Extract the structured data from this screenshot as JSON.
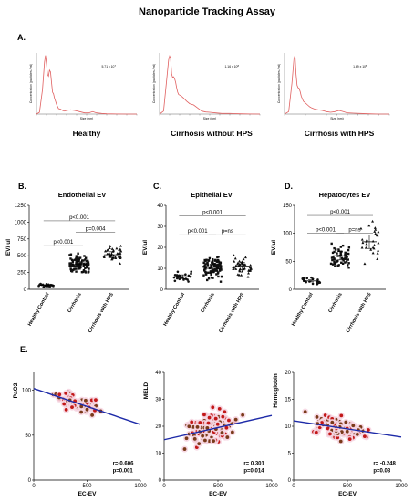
{
  "title": "Nanoparticle Tracking Assay",
  "chart_data": [
    {
      "panel": "A.",
      "type": "line",
      "caption": "Healthy",
      "annotation": "5.71 x 10^7",
      "xlabel": "Size (nm)",
      "ylabel": "Concentration (particles / ml)",
      "xlim": [
        0,
        1000
      ],
      "color": "#e06060",
      "x": [
        0,
        30,
        60,
        80,
        90,
        100,
        110,
        120,
        130,
        140,
        150,
        160,
        170,
        180,
        190,
        200,
        220,
        240,
        260,
        280,
        300,
        340,
        380,
        430,
        480,
        520,
        560,
        600,
        650,
        700,
        800,
        900,
        1000
      ],
      "y": [
        0,
        0.3,
        4,
        8.5,
        9.6,
        8.2,
        6.5,
        6.2,
        7.2,
        6.9,
        5.2,
        3.6,
        3.3,
        2.6,
        2.1,
        1.6,
        0.9,
        0.8,
        0.6,
        0.5,
        0.6,
        0.7,
        0.6,
        0.4,
        0.2,
        0.2,
        0.4,
        0.2,
        0.1,
        0.05,
        0.02,
        0,
        0
      ]
    },
    {
      "panel": "",
      "type": "line",
      "caption": "Cirrhosis without HPS",
      "annotation": "1.16 x 10^8",
      "xlabel": "Size (nm)",
      "ylabel": "Concentration (particles / ml)",
      "xlim": [
        0,
        1000
      ],
      "color": "#e06060",
      "x": [
        0,
        40,
        70,
        90,
        100,
        110,
        120,
        130,
        140,
        150,
        160,
        170,
        180,
        190,
        200,
        220,
        240,
        270,
        300,
        340,
        380,
        420,
        460,
        500,
        560,
        620,
        700,
        800,
        900,
        1000
      ],
      "y": [
        0,
        0.5,
        5.5,
        8.9,
        9.5,
        9.1,
        6.6,
        6,
        6.1,
        5.8,
        5.2,
        4.3,
        3.6,
        3.2,
        3.1,
        2.9,
        2.6,
        2.1,
        1.7,
        1.5,
        1,
        0.5,
        0.35,
        0.3,
        0.2,
        0.1,
        0.1,
        0.05,
        0.02,
        0
      ]
    },
    {
      "panel": "",
      "type": "line",
      "caption": "Cirrhosis with HPS",
      "annotation": "1.69 x 10^8",
      "xlabel": "Size (nm)",
      "ylabel": "Concentration (particles / ml)",
      "xlim": [
        0,
        1000
      ],
      "color": "#e06060",
      "x": [
        0,
        40,
        70,
        90,
        100,
        110,
        120,
        130,
        140,
        150,
        160,
        170,
        180,
        200,
        220,
        240,
        260,
        290,
        320,
        360,
        400,
        440,
        480,
        520,
        560,
        600,
        660,
        720,
        800,
        900,
        1000
      ],
      "y": [
        0,
        0.4,
        5,
        9.1,
        9.6,
        6.6,
        4.7,
        4.3,
        4.2,
        3.6,
        2.9,
        2.5,
        2.1,
        1.8,
        1.5,
        1.2,
        1,
        0.8,
        0.7,
        0.6,
        0.4,
        0.3,
        0.4,
        0.6,
        0.4,
        0.2,
        0.15,
        0.1,
        0.05,
        0,
        0
      ]
    },
    {
      "panel": "B.",
      "type": "scatter",
      "title": "Endothelial EV",
      "ylabel": "EV/ ul",
      "yticks": [
        0,
        250,
        500,
        750,
        1000,
        1250
      ],
      "ylim": [
        0,
        1250
      ],
      "categories": [
        "Healthy Control",
        "Cirrhosis",
        "Cirrhosis with HPS"
      ],
      "n": [
        22,
        95,
        42
      ],
      "means": [
        60,
        370,
        515
      ],
      "spread": [
        25,
        140,
        150
      ],
      "markers": [
        "circle",
        "square",
        "triangle"
      ],
      "comparisons": [
        {
          "from": 0,
          "to": 1,
          "label": "p<0.001",
          "y": 650
        },
        {
          "from": 1,
          "to": 2,
          "label": "p=0.004",
          "y": 850
        },
        {
          "from": 0,
          "to": 2,
          "label": "p<0.001",
          "y": 1020
        }
      ]
    },
    {
      "panel": "C.",
      "type": "scatter",
      "title": "Epithelial EV",
      "ylabel": "EV/ul",
      "yticks": [
        0,
        10,
        20,
        30,
        40
      ],
      "ylim": [
        0,
        40
      ],
      "categories": [
        "Healthy Control",
        "Cirrhosis",
        "Cirrhosis with HPS"
      ],
      "n": [
        22,
        95,
        42
      ],
      "means": [
        6,
        10,
        11
      ],
      "spread": [
        3,
        6,
        6
      ],
      "markers": [
        "circle",
        "square",
        "triangle"
      ],
      "comparisons": [
        {
          "from": 0,
          "to": 1,
          "label": "p<0.001",
          "y": 26
        },
        {
          "from": 1,
          "to": 2,
          "label": "p=ns",
          "y": 26
        },
        {
          "from": 0,
          "to": 2,
          "label": "p<0.001",
          "y": 35
        }
      ]
    },
    {
      "panel": "D.",
      "type": "scatter",
      "title": "Hepatocytes EV",
      "ylabel": "EV/ul",
      "yticks": [
        0,
        50,
        100,
        150
      ],
      "ylim": [
        0,
        150
      ],
      "categories": [
        "Healthy Control",
        "Cirrhosis",
        "Cirrhosis with HPS"
      ],
      "n": [
        22,
        55,
        28
      ],
      "means": [
        15,
        60,
        85
      ],
      "spread": [
        6,
        25,
        40
      ],
      "markers": [
        "circle",
        "square",
        "triangle"
      ],
      "comparisons": [
        {
          "from": 0,
          "to": 1,
          "label": "p<0.001",
          "y": 100
        },
        {
          "from": 1,
          "to": 2,
          "label": "p=ns",
          "y": 100
        },
        {
          "from": 0,
          "to": 2,
          "label": "p<0.001",
          "y": 132
        }
      ]
    },
    {
      "panel": "E.",
      "type": "scatter",
      "ylabel": "PaO2",
      "xlabel": "EC-EV",
      "xlim": [
        0,
        1000
      ],
      "ylim": [
        0,
        120
      ],
      "xticks": [
        0,
        500,
        1000
      ],
      "yticks": [
        0,
        50,
        100
      ],
      "fit": {
        "x": [
          0,
          1000
        ],
        "y": [
          102,
          62
        ]
      },
      "r_text": "r=-0.606",
      "p_text": "p=0.001",
      "n": 85,
      "y_center": 88,
      "y_spread": 10
    },
    {
      "panel": "",
      "type": "scatter",
      "ylabel": "MELD",
      "xlabel": "EC-EV",
      "xlim": [
        0,
        1000
      ],
      "ylim": [
        0,
        40
      ],
      "xticks": [
        0,
        500,
        1000
      ],
      "yticks": [
        0,
        10,
        20,
        30,
        40
      ],
      "fit": {
        "x": [
          0,
          1000
        ],
        "y": [
          15,
          24
        ]
      },
      "r_text": "r= 0.301",
      "p_text": "p=0.014",
      "n": 110,
      "y_center": 19,
      "y_spread": 7
    },
    {
      "panel": "",
      "type": "scatter",
      "ylabel": "Hemoglobin",
      "xlabel": "EC-EV",
      "xlim": [
        0,
        1000
      ],
      "ylim": [
        0,
        20
      ],
      "xticks": [
        0,
        500,
        1000
      ],
      "yticks": [
        0,
        5,
        10,
        15,
        20
      ],
      "fit": {
        "x": [
          0,
          1000
        ],
        "y": [
          11,
          8
        ]
      },
      "r_text": "r= -0.248",
      "p_text": "p=0.03",
      "n": 110,
      "y_center": 10,
      "y_spread": 2.2
    }
  ]
}
